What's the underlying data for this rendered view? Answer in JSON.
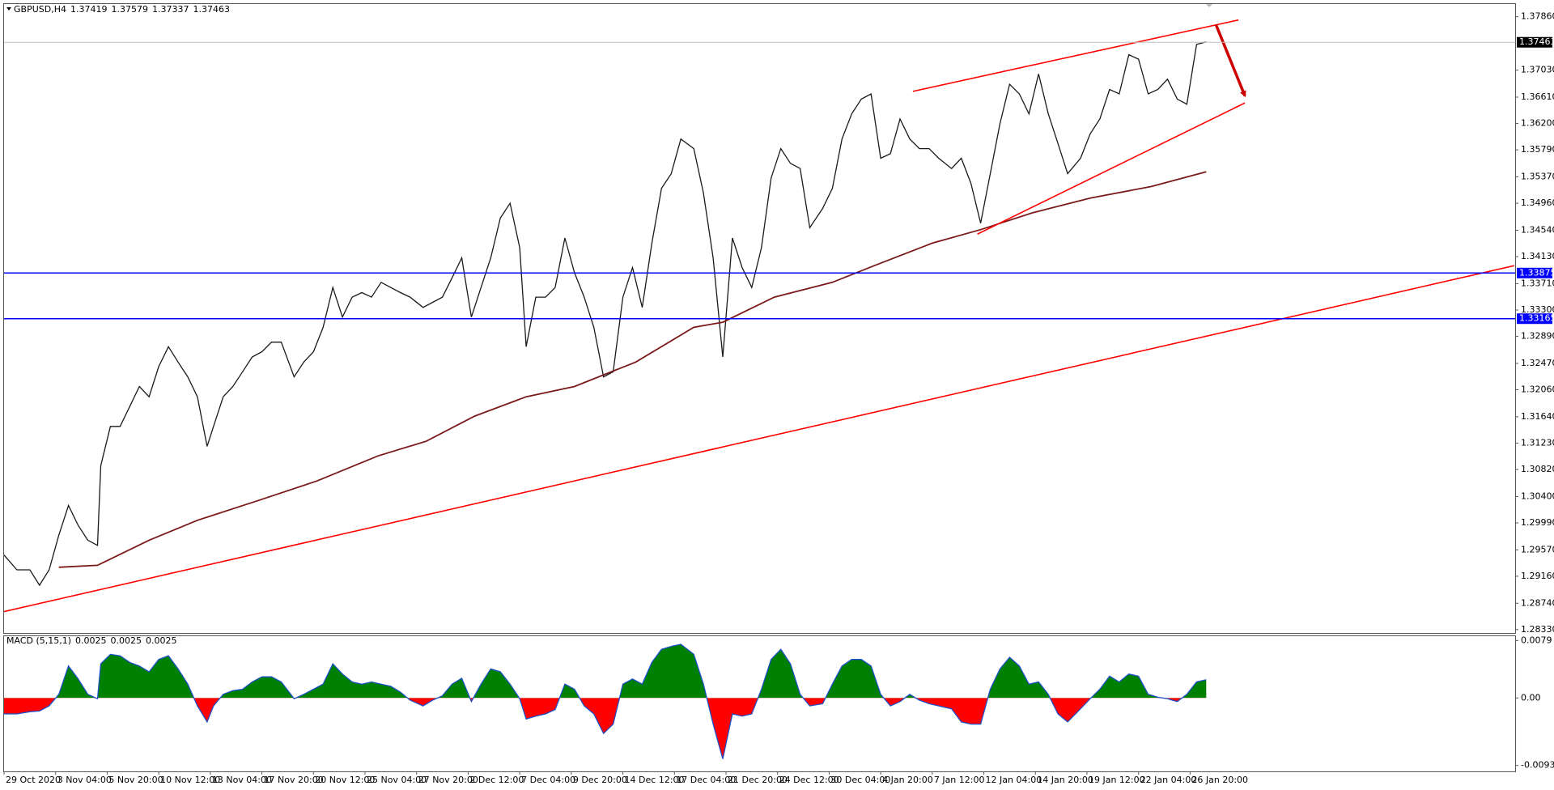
{
  "chart_data": [
    {
      "type": "line",
      "title": "GBPUSD,H4",
      "title_values": [
        1.37419,
        1.37579,
        1.37337,
        1.37463
      ],
      "xlim": [
        0,
        468.6
      ],
      "ylim": [
        1.28284,
        1.38045
      ],
      "yticks": [
        {
          "value": 1.3786,
          "label": "1.37860"
        },
        {
          "value": 1.3703,
          "label": "1.37030"
        },
        {
          "value": 1.3661,
          "label": "1.36610"
        },
        {
          "value": 1.362,
          "label": "1.36200"
        },
        {
          "value": 1.3579,
          "label": "1.35790"
        },
        {
          "value": 1.3537,
          "label": "1.35370"
        },
        {
          "value": 1.3496,
          "label": "1.34960"
        },
        {
          "value": 1.3454,
          "label": "1.34540"
        },
        {
          "value": 1.3413,
          "label": "1.34130"
        },
        {
          "value": 1.3371,
          "label": "1.33710"
        },
        {
          "value": 1.333,
          "label": "1.33300"
        },
        {
          "value": 1.3289,
          "label": "1.32890"
        },
        {
          "value": 1.3247,
          "label": "1.32470"
        },
        {
          "value": 1.3206,
          "label": "1.32060"
        },
        {
          "value": 1.3164,
          "label": "1.31640"
        },
        {
          "value": 1.3123,
          "label": "1.31230"
        },
        {
          "value": 1.3082,
          "label": "1.30820"
        },
        {
          "value": 1.304,
          "label": "1.30400"
        },
        {
          "value": 1.2999,
          "label": "1.29990"
        },
        {
          "value": 1.2957,
          "label": "1.29570"
        },
        {
          "value": 1.2916,
          "label": "1.29160"
        },
        {
          "value": 1.2874,
          "label": "1.28740"
        },
        {
          "value": 1.2833,
          "label": "1.28330"
        }
      ],
      "x": [
        0,
        4,
        8,
        11,
        14,
        17,
        20,
        23,
        26,
        29,
        30,
        33,
        36,
        39,
        42,
        45,
        48,
        51,
        54,
        57,
        60,
        63,
        65,
        68,
        71,
        74,
        77,
        80,
        83,
        86,
        90,
        93,
        96,
        99,
        102,
        105,
        108,
        111,
        114,
        117,
        120,
        123,
        126,
        130,
        133,
        136,
        139,
        142,
        145,
        148,
        151,
        154,
        157,
        160,
        162,
        165,
        168,
        171,
        174,
        177,
        180,
        183,
        186,
        189,
        192,
        195,
        198,
        201,
        204,
        207,
        210,
        214,
        217,
        220,
        223,
        226,
        229,
        232,
        235,
        238,
        241,
        244,
        247,
        250,
        254,
        257,
        260,
        263,
        266,
        269,
        272,
        275,
        278,
        281,
        284,
        287,
        290,
        294,
        297,
        300,
        303,
        306,
        309,
        312,
        315,
        318,
        321,
        324,
        327,
        330,
        334,
        337,
        340,
        343,
        346,
        349,
        352,
        355,
        358,
        361,
        364,
        367,
        370,
        373
      ],
      "series": [
        {
          "color": "#1a1a1a",
          "values": [
            1.2949,
            1.2926,
            1.2926,
            1.2902,
            1.2926,
            1.298,
            1.3026,
            1.2995,
            1.2972,
            1.2964,
            1.3088,
            1.3149,
            1.3149,
            1.318,
            1.3211,
            1.3195,
            1.3242,
            1.3273,
            1.3249,
            1.3226,
            1.3195,
            1.3118,
            1.3149,
            1.3195,
            1.3211,
            1.3234,
            1.3257,
            1.3265,
            1.328,
            1.328,
            1.3226,
            1.3249,
            1.3265,
            1.3303,
            1.3365,
            1.3319,
            1.335,
            1.3357,
            1.335,
            1.3373,
            1.3365,
            1.3357,
            1.335,
            1.3334,
            1.3342,
            1.335,
            1.338,
            1.3411,
            1.3319,
            1.3365,
            1.3411,
            1.3473,
            1.3496,
            1.3427,
            1.3273,
            1.335,
            1.335,
            1.3365,
            1.3442,
            1.3388,
            1.335,
            1.3303,
            1.3226,
            1.3234,
            1.335,
            1.3396,
            1.3334,
            1.3434,
            1.3519,
            1.3542,
            1.3596,
            1.3581,
            1.3512,
            1.3411,
            1.3257,
            1.3442,
            1.3396,
            1.3365,
            1.3427,
            1.3535,
            1.3581,
            1.3558,
            1.355,
            1.3458,
            1.3488,
            1.3519,
            1.3596,
            1.3635,
            1.3658,
            1.3666,
            1.3566,
            1.3573,
            1.3627,
            1.3596,
            1.3581,
            1.3581,
            1.3566,
            1.355,
            1.3566,
            1.3527,
            1.3465,
            1.3542,
            1.362,
            1.3681,
            1.3666,
            1.3635,
            1.3697,
            1.3635,
            1.3589,
            1.3542,
            1.3566,
            1.3604,
            1.3627,
            1.3673,
            1.3666,
            1.3727,
            1.372,
            1.3666,
            1.3673,
            1.3689,
            1.3658,
            1.365,
            1.3743,
            1.3747
          ]
        },
        {
          "color": "#7b1a1a",
          "x": [
            17,
            29,
            45,
            60,
            79,
            97,
            116,
            131,
            146,
            162,
            177,
            196,
            214,
            223,
            239,
            257,
            270,
            288,
            303,
            319,
            337,
            356,
            373
          ],
          "values": [
            1.293,
            1.2933,
            1.2972,
            1.3003,
            1.3034,
            1.3064,
            1.3103,
            1.3126,
            1.3165,
            1.3195,
            1.3211,
            1.3249,
            1.3303,
            1.3311,
            1.335,
            1.3373,
            1.3399,
            1.3434,
            1.3455,
            1.3481,
            1.3504,
            1.3522,
            1.3545
          ]
        }
      ],
      "levels": [
        1.33875,
        1.33165
      ],
      "level_color": "#0000ff",
      "trendline_color": "#ff0000",
      "trendlines": [
        {
          "x": [
            0,
            468.6
          ],
          "y": [
            1.2861,
            1.3399
          ]
        },
        {
          "x": [
            282,
            383
          ],
          "y": [
            1.367,
            1.3781
          ]
        },
        {
          "x": [
            302,
            385
          ],
          "y": [
            1.3448,
            1.3652
          ]
        }
      ],
      "arrow": {
        "x": [
          376,
          385
        ],
        "y": [
          1.3774,
          1.3663
        ],
        "color": "#cc0000"
      }
    },
    {
      "type": "area",
      "title": "MACD (5,15,1)",
      "title_values": [
        0.0025,
        0.0025,
        0.0025
      ],
      "xlim": [
        0,
        468.6
      ],
      "ylim": [
        -0.01,
        0.0085
      ],
      "yticks": [
        0.0079,
        {
          "value": 0,
          "label": "0.00"
        },
        -0.0093
      ],
      "xticks": [
        {
          "value": 0,
          "label": "29 Oct 2020"
        },
        {
          "value": 16,
          "label": "3 Nov 04:00"
        },
        {
          "value": 32,
          "label": "5 Nov 20:00"
        },
        {
          "value": 48,
          "label": "10 Nov 12:00"
        },
        {
          "value": 64,
          "label": "13 Nov 04:00"
        },
        {
          "value": 80,
          "label": "17 Nov 20:00"
        },
        {
          "value": 96,
          "label": "20 Nov 12:00"
        },
        {
          "value": 112,
          "label": "25 Nov 04:00"
        },
        {
          "value": 128,
          "label": "27 Nov 20:00"
        },
        {
          "value": 144,
          "label": "2 Dec 12:00"
        },
        {
          "value": 160,
          "label": "7 Dec 04:00"
        },
        {
          "value": 176,
          "label": "9 Dec 20:00"
        },
        {
          "value": 192,
          "label": "14 Dec 12:00"
        },
        {
          "value": 208,
          "label": "17 Dec 04:00"
        },
        {
          "value": 224,
          "label": "21 Dec 20:00"
        },
        {
          "value": 240,
          "label": "24 Dec 12:00"
        },
        {
          "value": 256,
          "label": "30 Dec 04:00"
        },
        {
          "value": 272,
          "label": "4 Jan 20:00"
        },
        {
          "value": 288,
          "label": "7 Jan 12:00"
        },
        {
          "value": 304,
          "label": "12 Jan 04:00"
        },
        {
          "value": 320,
          "label": "14 Jan 20:00"
        },
        {
          "value": 336,
          "label": "19 Jan 12:00"
        },
        {
          "value": 352,
          "label": "22 Jan 04:00"
        },
        {
          "value": 368,
          "label": "26 Jan 20:00"
        }
      ],
      "x": [
        0,
        4,
        8,
        11,
        14,
        17,
        20,
        23,
        26,
        29,
        30,
        33,
        36,
        39,
        42,
        45,
        48,
        51,
        54,
        57,
        60,
        63,
        65,
        68,
        71,
        74,
        77,
        80,
        83,
        86,
        90,
        93,
        96,
        99,
        102,
        105,
        108,
        111,
        114,
        117,
        120,
        123,
        126,
        130,
        133,
        136,
        139,
        142,
        145,
        148,
        151,
        154,
        157,
        160,
        162,
        165,
        168,
        171,
        174,
        177,
        180,
        183,
        186,
        189,
        192,
        195,
        198,
        201,
        204,
        207,
        210,
        214,
        217,
        220,
        223,
        226,
        229,
        232,
        235,
        238,
        241,
        244,
        247,
        250,
        254,
        257,
        260,
        263,
        266,
        269,
        272,
        275,
        278,
        281,
        284,
        287,
        290,
        294,
        297,
        300,
        303,
        306,
        309,
        312,
        315,
        318,
        321,
        324,
        327,
        330,
        334,
        337,
        340,
        343,
        346,
        349,
        352,
        355,
        358,
        361,
        364,
        367,
        370,
        373
      ],
      "values": [
        -0.0022,
        -0.0022,
        -0.0019,
        -0.0018,
        -0.0011,
        0.0005,
        0.0044,
        0.0026,
        0.0005,
        -0.0001,
        0.0047,
        0.006,
        0.0058,
        0.0049,
        0.0044,
        0.0036,
        0.0053,
        0.0058,
        0.004,
        0.0019,
        -0.0011,
        -0.0033,
        -0.0011,
        0.0005,
        0.001,
        0.0012,
        0.0022,
        0.0029,
        0.0029,
        0.0022,
        -0.0001,
        0.0005,
        0.0012,
        0.0019,
        0.0047,
        0.0033,
        0.0022,
        0.0019,
        0.0022,
        0.0019,
        0.0016,
        0.0008,
        -0.0003,
        -0.0011,
        -0.0003,
        0.0003,
        0.0019,
        0.0027,
        -0.0005,
        0.0019,
        0.004,
        0.0036,
        0.0019,
        -0.0001,
        -0.0029,
        -0.0025,
        -0.0022,
        -0.0016,
        0.0019,
        0.0012,
        -0.0011,
        -0.0022,
        -0.0049,
        -0.0036,
        0.0019,
        0.0026,
        0.0019,
        0.0049,
        0.0067,
        0.0071,
        0.0074,
        0.006,
        0.0019,
        -0.0036,
        -0.0084,
        -0.0022,
        -0.0025,
        -0.0022,
        0.0012,
        0.0053,
        0.0067,
        0.0047,
        0.0005,
        -0.0011,
        -0.0008,
        0.0019,
        0.0044,
        0.0053,
        0.0053,
        0.0044,
        0.0005,
        -0.0011,
        -0.0005,
        0.0005,
        -0.0003,
        -0.0008,
        -0.0011,
        -0.0015,
        -0.0033,
        -0.0036,
        -0.0036,
        0.0012,
        0.004,
        0.0056,
        0.0044,
        0.0019,
        0.0022,
        0.0005,
        -0.0022,
        -0.0033,
        -0.0015,
        -0.0001,
        0.0012,
        0.003,
        0.0022,
        0.0033,
        0.003,
        0.0005,
        0.0001,
        -0.0001,
        -0.0005,
        0.0005,
        0.0022,
        0.0025
      ],
      "pos_color": "#008000",
      "neg_color": "#ff0000",
      "line_color": "#1e50c8"
    }
  ]
}
